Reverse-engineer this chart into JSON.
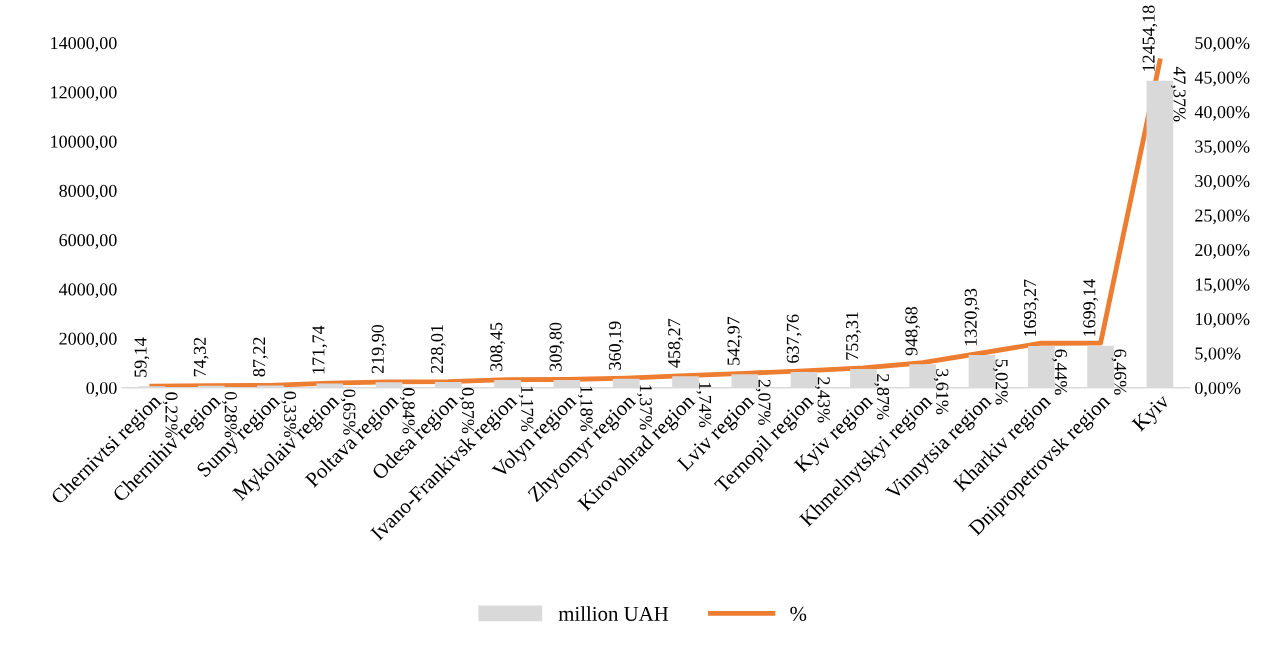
{
  "chart_data": {
    "type": "bar",
    "categories": [
      "Chernivtsi region",
      "Chernihiv region",
      "Sumy region",
      "Mykolaiv region",
      "Poltava region",
      "Odesa region",
      "Ivano-Frankivsk region",
      "Volyn region",
      "Zhytomyr region",
      "Kirovohrad region",
      "Lviv region",
      "Ternopil region",
      "Kyiv region",
      "Khmelnytskyi region",
      "Vinnytsia region",
      "Kharkiv region",
      "Dnipropetrovsk region",
      "Kyiv"
    ],
    "series": [
      {
        "name": "million UAH",
        "color": "#d9d9d9",
        "values": [
          59.14,
          74.32,
          87.22,
          171.74,
          219.9,
          228.01,
          308.45,
          309.8,
          360.19,
          458.27,
          542.97,
          637.76,
          753.31,
          948.68,
          1320.93,
          1693.27,
          1699.14,
          12454.18
        ],
        "value_labels": [
          "59,14",
          "74,32",
          "87,22",
          "171,74",
          "219,90",
          "228,01",
          "308,45",
          "309,80",
          "360,19",
          "458,27",
          "542,97",
          "637,76",
          "753,31",
          "948,68",
          "1320,93",
          "1693,27",
          "1699,14",
          "12454,18"
        ]
      },
      {
        "name": "%",
        "type": "line",
        "axis": "y2",
        "color": "#ed7d31",
        "values": [
          0.22,
          0.28,
          0.33,
          0.65,
          0.84,
          0.87,
          1.17,
          1.18,
          1.37,
          1.74,
          2.07,
          2.43,
          2.87,
          3.61,
          5.02,
          6.44,
          6.46,
          47.37
        ],
        "value_labels": [
          "0,22%",
          "0,28%",
          "0,33%",
          "0,65%",
          "0,84%",
          "0,87%",
          "1,17%",
          "1,18%",
          "1,37%",
          "1,74%",
          "2,07%",
          "2,43%",
          "2,87%",
          "3,61%",
          "5,02%",
          "6,44%",
          "6,46%",
          "47,37%"
        ]
      }
    ],
    "ylim": [
      0,
      14000
    ],
    "yticks": [
      {
        "value": 0,
        "label": "0,00"
      },
      {
        "value": 2000,
        "label": "2000,00"
      },
      {
        "value": 4000,
        "label": "4000,00"
      },
      {
        "value": 6000,
        "label": "6000,00"
      },
      {
        "value": 8000,
        "label": "8000,00"
      },
      {
        "value": 10000,
        "label": "10000,00"
      },
      {
        "value": 12000,
        "label": "12000,00"
      },
      {
        "value": 14000,
        "label": "14000,00"
      }
    ],
    "y2lim": [
      0,
      50
    ],
    "y2ticks": [
      {
        "value": 0,
        "label": "0,00%"
      },
      {
        "value": 5,
        "label": "5,00%"
      },
      {
        "value": 10,
        "label": "10,00%"
      },
      {
        "value": 15,
        "label": "15,00%"
      },
      {
        "value": 20,
        "label": "20,00%"
      },
      {
        "value": 25,
        "label": "25,00%"
      },
      {
        "value": 30,
        "label": "30,00%"
      },
      {
        "value": 35,
        "label": "35,00%"
      },
      {
        "value": 40,
        "label": "40,00%"
      },
      {
        "value": 45,
        "label": "45,00%"
      },
      {
        "value": 50,
        "label": "50,00%"
      }
    ],
    "legend": "bottom",
    "grid": false,
    "marker": "none",
    "line_style": "solid"
  }
}
